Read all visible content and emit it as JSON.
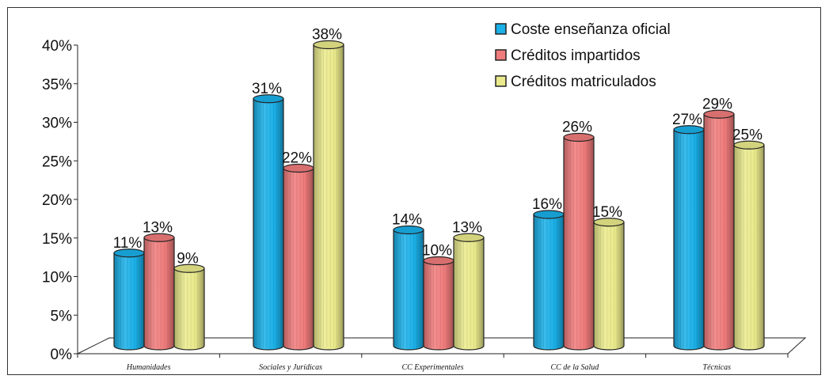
{
  "chart_data": {
    "type": "bar",
    "categories": [
      "Humanidades",
      "Sociales y Jurídicas",
      "CC Experimentales",
      "CC de la Salud",
      "Técnicas"
    ],
    "series": [
      {
        "name": "Coste enseñanza oficial",
        "values": [
          11,
          31,
          14,
          16,
          27
        ],
        "labels": [
          "11%",
          "31%",
          "14%",
          "16%",
          "27%"
        ],
        "color": "#1ab0e8"
      },
      {
        "name": "Créditos impartidos",
        "values": [
          13,
          22,
          10,
          26,
          29
        ],
        "labels": [
          "13%",
          "22%",
          "10%",
          "26%",
          "29%"
        ],
        "color": "#f07b7b"
      },
      {
        "name": "Créditos matriculados",
        "values": [
          9,
          38,
          13,
          15,
          25
        ],
        "labels": [
          "9%",
          "38%",
          "13%",
          "15%",
          "25%"
        ],
        "color": "#eaea8c"
      }
    ],
    "y_ticks": [
      "0%",
      "5%",
      "10%",
      "15%",
      "20%",
      "25%",
      "30%",
      "35%",
      "40%"
    ],
    "ylim": [
      0,
      40
    ],
    "grid": false,
    "legend": "top-right",
    "title": "",
    "xlabel": "",
    "ylabel": ""
  }
}
